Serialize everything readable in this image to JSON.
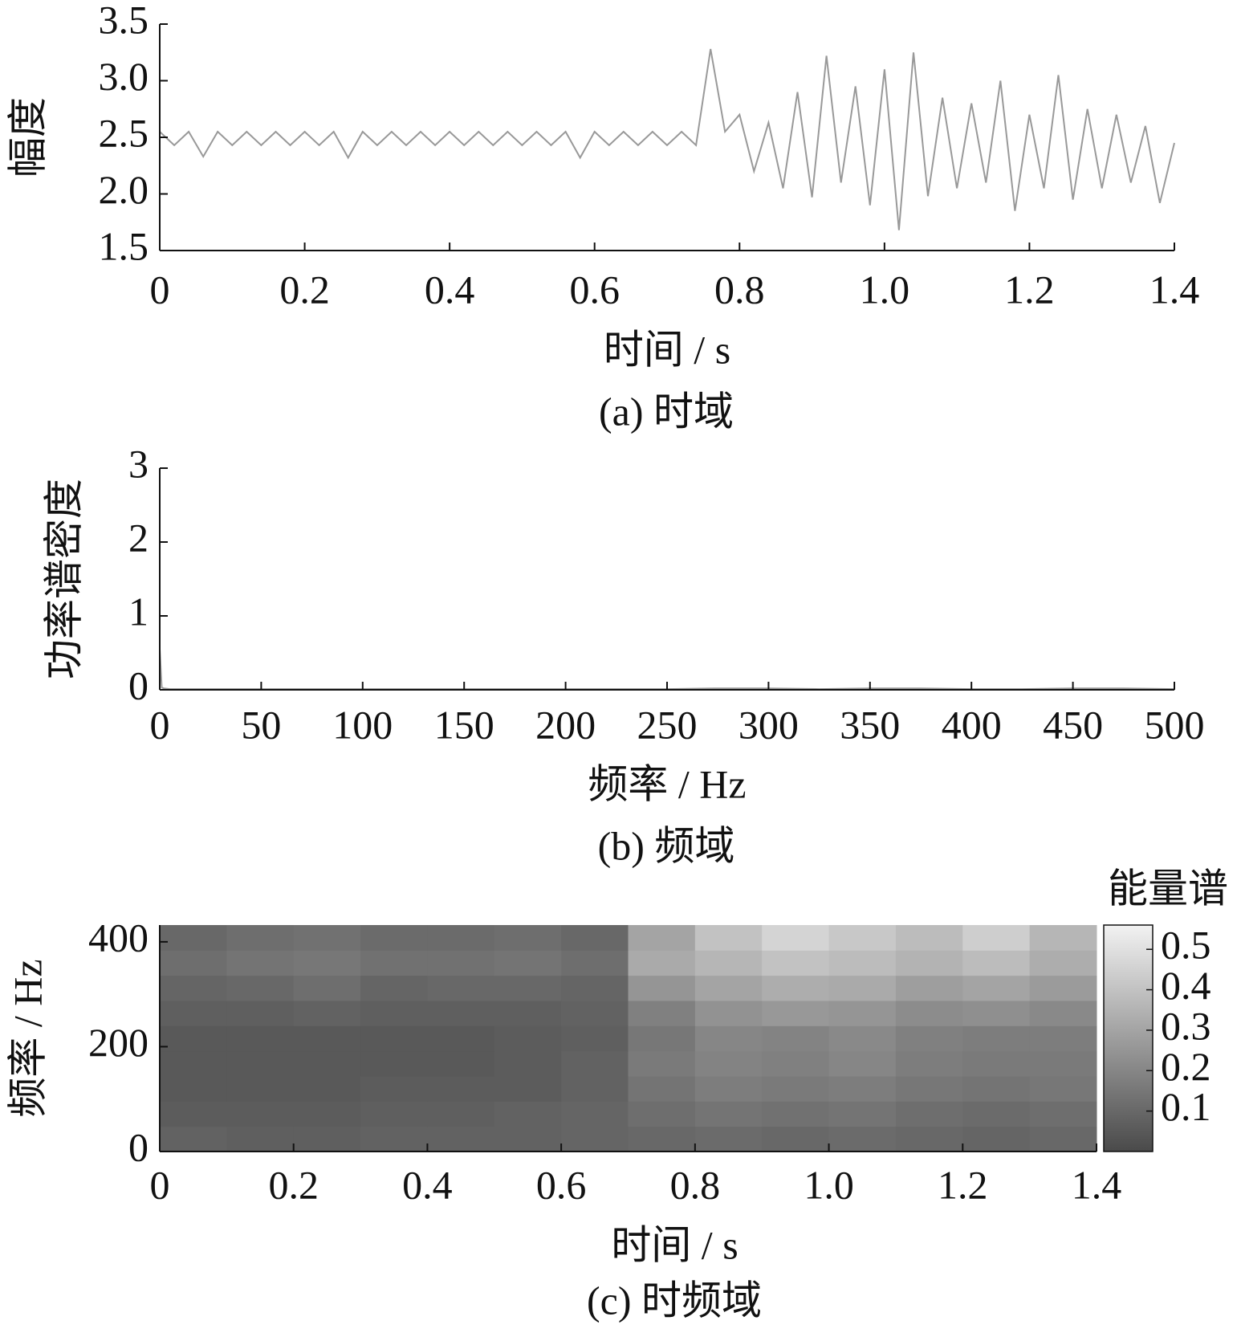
{
  "chart_data": [
    {
      "type": "line",
      "ylabel": "幅度",
      "xlabel": "时间 / s",
      "caption": "(a)  时域",
      "color": "#999999",
      "x": [
        0,
        0.02,
        0.04,
        0.06,
        0.08,
        0.1,
        0.12,
        0.14,
        0.16,
        0.18,
        0.2,
        0.22,
        0.24,
        0.26,
        0.28,
        0.3,
        0.32,
        0.34,
        0.36,
        0.38,
        0.4,
        0.42,
        0.44,
        0.46,
        0.48,
        0.5,
        0.52,
        0.54,
        0.56,
        0.58,
        0.6,
        0.62,
        0.64,
        0.66,
        0.68,
        0.7,
        0.72,
        0.74,
        0.76,
        0.78,
        0.8,
        0.82,
        0.84,
        0.86,
        0.88,
        0.9,
        0.92,
        0.94,
        0.96,
        0.98,
        1.0,
        1.02,
        1.04,
        1.06,
        1.08,
        1.1,
        1.12,
        1.14,
        1.16,
        1.18,
        1.2,
        1.22,
        1.24,
        1.26,
        1.28,
        1.3,
        1.32,
        1.34,
        1.36,
        1.38,
        1.4
      ],
      "values": [
        2.55,
        2.43,
        2.55,
        2.33,
        2.55,
        2.43,
        2.55,
        2.43,
        2.55,
        2.43,
        2.55,
        2.43,
        2.55,
        2.32,
        2.55,
        2.43,
        2.55,
        2.43,
        2.55,
        2.43,
        2.55,
        2.43,
        2.55,
        2.43,
        2.55,
        2.43,
        2.55,
        2.43,
        2.55,
        2.32,
        2.55,
        2.43,
        2.55,
        2.43,
        2.55,
        2.43,
        2.55,
        2.43,
        3.28,
        2.55,
        2.7,
        2.2,
        2.63,
        2.05,
        2.9,
        1.97,
        3.22,
        2.1,
        2.95,
        1.9,
        3.1,
        1.68,
        3.25,
        1.98,
        2.85,
        2.05,
        2.8,
        2.1,
        3.0,
        1.85,
        2.7,
        2.05,
        3.05,
        1.95,
        2.75,
        2.05,
        2.7,
        2.1,
        2.6,
        1.92,
        2.45
      ],
      "xlim": [
        0,
        1.4
      ],
      "xticks": [
        0,
        0.2,
        0.4,
        0.6,
        0.8,
        {
          "value": 1,
          "label": "1.0"
        },
        1.2,
        1.4
      ],
      "ylim": [
        1.5,
        3.5
      ],
      "yticks": [
        1.5,
        {
          "value": 2,
          "label": "2.0"
        },
        2.5,
        {
          "value": 3,
          "label": "3.0"
        },
        3.5
      ]
    },
    {
      "type": "line",
      "ylabel": "功率谱密度",
      "xlabel": "频率 / Hz",
      "caption": "(b)  频域",
      "color": "#999999",
      "x": [
        0,
        1,
        2,
        5,
        10,
        25,
        50,
        75,
        100,
        125,
        150,
        175,
        200,
        225,
        250,
        275,
        300,
        325,
        350,
        375,
        400,
        425,
        450,
        475,
        500
      ],
      "values": [
        0.55,
        0.03,
        0.02,
        0.01,
        0.01,
        0.01,
        0.01,
        0.01,
        0.01,
        0.01,
        0.01,
        0.01,
        0.01,
        0.01,
        0.01,
        0.02,
        0.02,
        0.01,
        0.02,
        0.02,
        0.01,
        0.01,
        0.02,
        0.02,
        0.01
      ],
      "xlim": [
        0,
        500
      ],
      "xticks": [
        0,
        50,
        100,
        150,
        200,
        250,
        300,
        350,
        400,
        450,
        500
      ],
      "ylim": [
        0,
        3
      ],
      "yticks": [
        0,
        1,
        2,
        3
      ]
    },
    {
      "type": "heatmap",
      "ylabel": "频率 / Hz",
      "xlabel": "时间 / s",
      "caption": "(c)  时频域",
      "colorbar_label": "能量谱",
      "colormap": [
        "#4a4a4a",
        "#f2f2f2"
      ],
      "clim": [
        0,
        0.56
      ],
      "cticks": [
        0.1,
        0.2,
        0.3,
        0.4,
        0.5
      ],
      "xlim": [
        0,
        1.4
      ],
      "xticks": [
        0,
        0.2,
        0.4,
        0.6,
        0.8,
        {
          "value": 1,
          "label": "1.0"
        },
        1.2,
        1.4
      ],
      "ylim": [
        0,
        432
      ],
      "yticks": [
        0,
        200,
        400
      ],
      "z": [
        [
          0.08,
          0.07,
          0.07,
          0.08,
          0.08,
          0.08,
          0.09,
          0.1,
          0.11,
          0.1,
          0.11,
          0.1,
          0.09,
          0.1
        ],
        [
          0.06,
          0.06,
          0.06,
          0.07,
          0.07,
          0.08,
          0.09,
          0.12,
          0.14,
          0.13,
          0.14,
          0.12,
          0.11,
          0.12
        ],
        [
          0.05,
          0.05,
          0.05,
          0.06,
          0.06,
          0.06,
          0.08,
          0.14,
          0.17,
          0.16,
          0.17,
          0.15,
          0.14,
          0.15
        ],
        [
          0.05,
          0.05,
          0.05,
          0.05,
          0.05,
          0.06,
          0.08,
          0.16,
          0.19,
          0.18,
          0.2,
          0.17,
          0.16,
          0.16
        ],
        [
          0.05,
          0.05,
          0.05,
          0.05,
          0.05,
          0.06,
          0.07,
          0.15,
          0.2,
          0.19,
          0.21,
          0.18,
          0.17,
          0.17
        ],
        [
          0.07,
          0.07,
          0.08,
          0.07,
          0.07,
          0.07,
          0.08,
          0.18,
          0.24,
          0.26,
          0.25,
          0.22,
          0.23,
          0.21
        ],
        [
          0.09,
          0.1,
          0.12,
          0.09,
          0.1,
          0.1,
          0.09,
          0.25,
          0.3,
          0.33,
          0.32,
          0.28,
          0.3,
          0.27
        ],
        [
          0.12,
          0.14,
          0.15,
          0.13,
          0.13,
          0.14,
          0.12,
          0.32,
          0.36,
          0.4,
          0.38,
          0.35,
          0.38,
          0.33
        ],
        [
          0.1,
          0.12,
          0.13,
          0.11,
          0.11,
          0.12,
          0.1,
          0.3,
          0.4,
          0.46,
          0.42,
          0.38,
          0.44,
          0.36
        ]
      ]
    }
  ]
}
